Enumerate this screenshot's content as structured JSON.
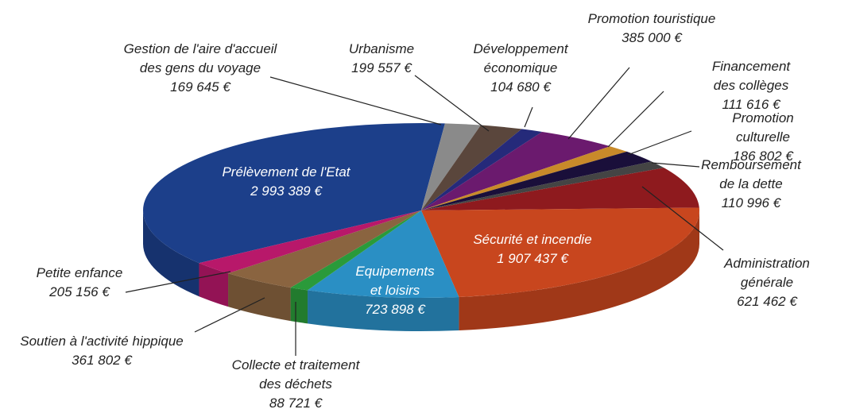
{
  "chart_data": {
    "type": "pie",
    "startangle": 143,
    "categories": [
      "Prélèvement de l'Etat",
      "Gestion de l'aire d'accueil\ndes gens du voyage",
      "Urbanisme",
      "Développement\néconomique",
      "Promotion touristique",
      "Financement des collèges",
      "Promotion culturelle",
      "Remboursement\nde la dette",
      "Administration\ngénérale",
      "Sécurité et incendie",
      "Equipements\net loisirs",
      "Collecte et traitement\ndes déchets",
      "Soutien à l'activité hippique",
      "Petite enfance"
    ],
    "values": [
      2993389,
      169645,
      199557,
      104680,
      385000,
      111616,
      186802,
      110996,
      621462,
      1907437,
      723898,
      88721,
      361802,
      205156
    ],
    "value_labels": [
      "2 993 389 €",
      "169 645 €",
      "199 557 €",
      "104 680 €",
      "385 000 €",
      "111 616 €",
      "186 802 €",
      "110 996 €",
      "621 462 €",
      "1 907 437 €",
      "723 898 €",
      "88 721 €",
      "361 802 €",
      "205 156 €"
    ],
    "colors": [
      "#1c3f8a",
      "#8a8a8a",
      "#5a463c",
      "#252a7a",
      "#6b1a6e",
      "#c88a2a",
      "#1a0f3a",
      "#444444",
      "#8e1a1e",
      "#c8461e",
      "#2a8fc4",
      "#2a9a3a",
      "#8a6440",
      "#b8186a"
    ]
  }
}
